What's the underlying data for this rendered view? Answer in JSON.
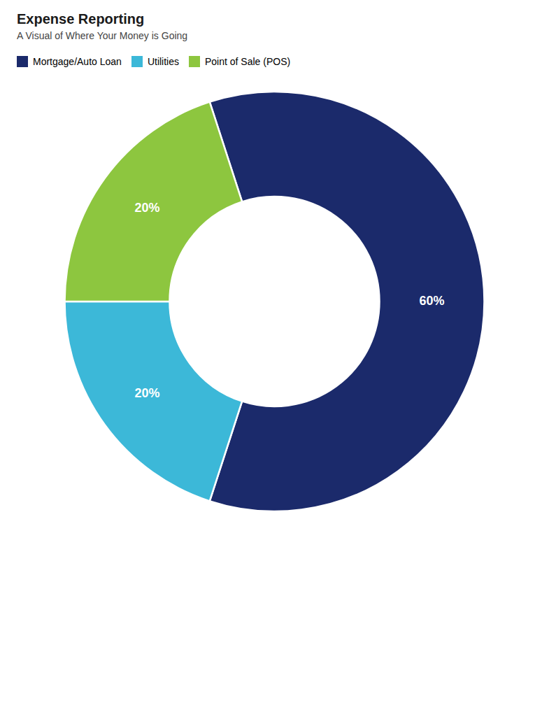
{
  "chart_data": {
    "type": "pie",
    "title": "Expense Reporting",
    "subtitle": "A Visual of Where Your Money is Going",
    "categories": [
      "Mortgage/Auto Loan",
      "Utilities",
      "Point of Sale (POS)"
    ],
    "values": [
      60,
      20,
      20
    ],
    "value_labels": [
      "60%",
      "20%",
      "20%"
    ],
    "colors": [
      "#1b2a6b",
      "#3cb8d8",
      "#8dc63f"
    ],
    "data_labels": true,
    "legend": "top"
  }
}
